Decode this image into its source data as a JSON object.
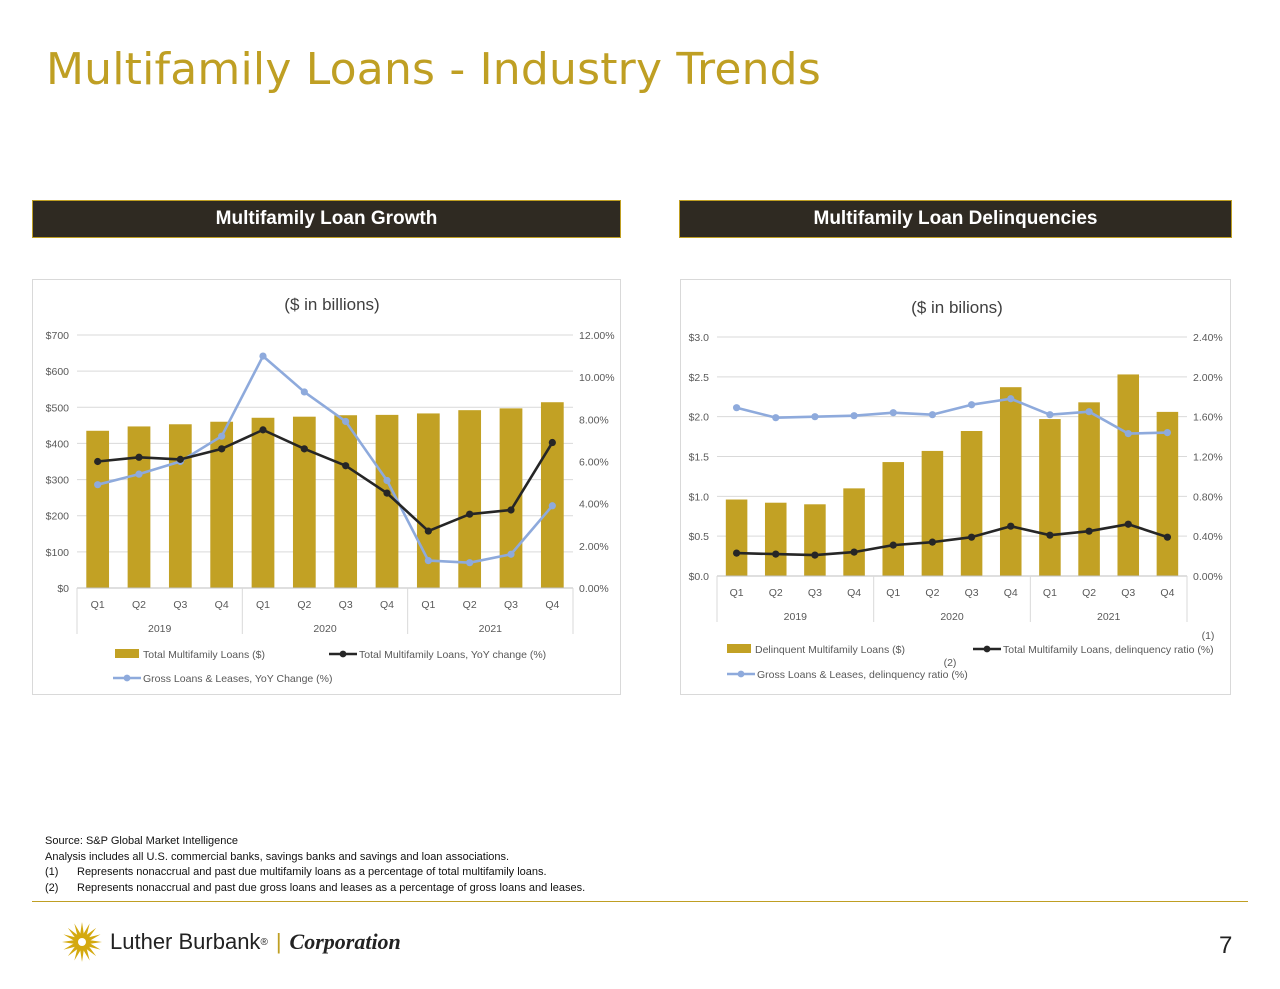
{
  "page": {
    "title": "Multifamily Loans - Industry Trends",
    "banner_left": "Multifamily Loan Growth",
    "banner_right": "Multifamily Loan Delinquencies",
    "footnotes": {
      "source": "Source: S&P Global Market Intelligence",
      "analysis": "Analysis includes all U.S. commercial banks, savings banks and savings and loan associations.",
      "notes": [
        {
          "num": "(1)",
          "text": "Represents nonaccrual and past due multifamily loans as a percentage of total multifamily loans."
        },
        {
          "num": "(2)",
          "text": "Represents nonaccrual and past due gross loans and leases as a percentage of gross loans and leases."
        }
      ]
    },
    "logo": {
      "name": "Luther Burbank",
      "reg": "®",
      "sep": "|",
      "corp": "Corporation"
    },
    "page_number": "7",
    "colors": {
      "gold": "#bf9f23",
      "bar": "#c2a124",
      "dark_line": "#262626",
      "light_line": "#8eaadc",
      "banner_bg": "#2f2a22"
    }
  },
  "chart_data": [
    {
      "type": "bar",
      "title": "($ in billions)",
      "categories": [
        "Q1",
        "Q2",
        "Q3",
        "Q4",
        "Q1",
        "Q2",
        "Q3",
        "Q4",
        "Q1",
        "Q2",
        "Q3",
        "Q4"
      ],
      "groups": [
        {
          "label": "2019",
          "count": 4
        },
        {
          "label": "2020",
          "count": 4
        },
        {
          "label": "2021",
          "count": 4
        }
      ],
      "series": [
        {
          "name": "Total Multifamily Loans ($)",
          "kind": "bar",
          "axis": "left",
          "values": [
            435,
            447,
            453,
            460,
            471,
            474,
            478,
            479,
            483,
            492,
            497,
            514
          ]
        },
        {
          "name": "Total Multifamily Loans, YoY change (%)",
          "kind": "line",
          "axis": "right",
          "values": [
            6.0,
            6.2,
            6.1,
            6.6,
            7.5,
            6.6,
            5.8,
            4.5,
            2.7,
            3.5,
            3.7,
            6.9
          ]
        },
        {
          "name": "Gross Loans & Leases, YoY Change (%)",
          "kind": "line",
          "axis": "right",
          "values": [
            4.9,
            5.4,
            6.0,
            7.2,
            11.0,
            9.3,
            7.9,
            5.1,
            1.3,
            1.2,
            1.6,
            3.9
          ]
        }
      ],
      "y_left": {
        "min": 0,
        "max": 700,
        "ticks": [
          "$0",
          "$100",
          "$200",
          "$300",
          "$400",
          "$500",
          "$600",
          "$700"
        ]
      },
      "y_right": {
        "min": 0,
        "max": 12,
        "ticks": [
          "0.00%",
          "2.00%",
          "4.00%",
          "6.00%",
          "8.00%",
          "10.00%",
          "12.00%"
        ]
      },
      "grid": true,
      "legend": "bottom"
    },
    {
      "type": "bar",
      "title": "($ in bilions)",
      "categories": [
        "Q1",
        "Q2",
        "Q3",
        "Q4",
        "Q1",
        "Q2",
        "Q3",
        "Q4",
        "Q1",
        "Q2",
        "Q3",
        "Q4"
      ],
      "groups": [
        {
          "label": "2019",
          "count": 4
        },
        {
          "label": "2020",
          "count": 4
        },
        {
          "label": "2021",
          "count": 4
        }
      ],
      "series": [
        {
          "name": "Delinquent Multifamily Loans ($)",
          "kind": "bar",
          "axis": "left",
          "values": [
            0.96,
            0.92,
            0.9,
            1.1,
            1.43,
            1.57,
            1.82,
            2.37,
            1.97,
            2.18,
            2.53,
            2.06
          ]
        },
        {
          "name": "Total Multifamily Loans, delinquency ratio (%)",
          "note": "(1)",
          "kind": "line",
          "axis": "right",
          "values": [
            0.23,
            0.22,
            0.21,
            0.24,
            0.31,
            0.34,
            0.39,
            0.5,
            0.41,
            0.45,
            0.52,
            0.39
          ]
        },
        {
          "name": "Gross Loans & Leases, delinquency ratio (%)",
          "note": "(2)",
          "kind": "line",
          "axis": "right",
          "values": [
            1.69,
            1.59,
            1.6,
            1.61,
            1.64,
            1.62,
            1.72,
            1.78,
            1.62,
            1.65,
            1.43,
            1.44
          ]
        }
      ],
      "y_left": {
        "min": 0,
        "max": 3.0,
        "ticks": [
          "$0.0",
          "$0.5",
          "$1.0",
          "$1.5",
          "$2.0",
          "$2.5",
          "$3.0"
        ]
      },
      "y_right": {
        "min": 0,
        "max": 2.4,
        "ticks": [
          "0.00%",
          "0.40%",
          "0.80%",
          "1.20%",
          "1.60%",
          "2.00%",
          "2.40%"
        ]
      },
      "grid": true,
      "legend": "bottom"
    }
  ]
}
